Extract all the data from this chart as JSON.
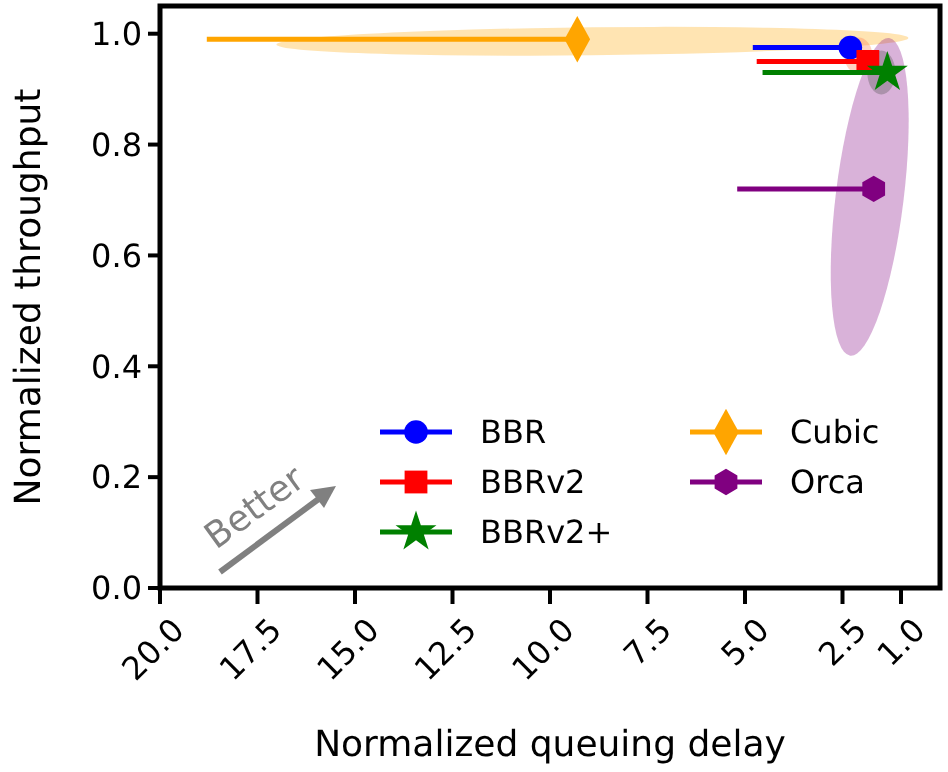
{
  "chart_data": {
    "type": "scatter",
    "xlabel": "Normalized queuing delay",
    "ylabel": "Normalized throughput",
    "xlim": [
      20,
      0
    ],
    "xticks": [
      {
        "value": 20,
        "label": "20.0"
      },
      17.5,
      {
        "value": 15,
        "label": "15.0"
      },
      12.5,
      {
        "value": 10,
        "label": "10.0"
      },
      7.5,
      {
        "value": 5,
        "label": "5.0"
      },
      2.5,
      {
        "value": 1,
        "label": "1.0"
      }
    ],
    "ylim": [
      0,
      1.05
    ],
    "yticks": [
      {
        "value": 0,
        "label": "0.0"
      },
      0.2,
      0.4,
      0.6,
      0.8,
      {
        "value": 1,
        "label": "1.0"
      }
    ],
    "legend": "bottom right",
    "grid": false,
    "annotations": [
      "Better"
    ],
    "series": [
      {
        "name": "BBR",
        "color": "#0000ff",
        "marker": "circle",
        "x": [
          2.3
        ],
        "values": [
          0.975
        ],
        "xerrors": [
          [
            2.3,
            4.8
          ]
        ]
      },
      {
        "name": "BBRv2",
        "color": "#ff0000",
        "marker": "square",
        "x": [
          1.85
        ],
        "values": [
          0.95
        ],
        "xerrors": [
          [
            1.85,
            4.7
          ]
        ]
      },
      {
        "name": "BBRv2+",
        "color": "#008000",
        "marker": "star",
        "x": [
          1.35
        ],
        "values": [
          0.93
        ],
        "xerrors": [
          [
            1.35,
            4.55
          ]
        ]
      },
      {
        "name": "Cubic",
        "color": "#ffa500",
        "marker": "diamond",
        "x": [
          9.3
        ],
        "values": [
          0.99
        ],
        "xerrors": [
          [
            9.3,
            18.8
          ]
        ]
      },
      {
        "name": "Orca",
        "color": "#800080",
        "x": [
          1.7
        ],
        "values": [
          0.72
        ],
        "xerrors": [
          [
            1.7,
            5.2
          ]
        ]
      }
    ]
  }
}
